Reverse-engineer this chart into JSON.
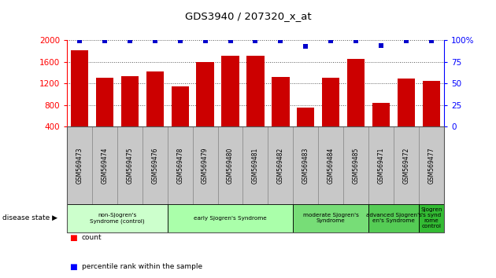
{
  "title": "GDS3940 / 207320_x_at",
  "samples": [
    "GSM569473",
    "GSM569474",
    "GSM569475",
    "GSM569476",
    "GSM569478",
    "GSM569479",
    "GSM569480",
    "GSM569481",
    "GSM569482",
    "GSM569483",
    "GSM569484",
    "GSM569485",
    "GSM569471",
    "GSM569472",
    "GSM569477"
  ],
  "counts": [
    1820,
    1310,
    1340,
    1420,
    1140,
    1590,
    1720,
    1710,
    1320,
    750,
    1310,
    1650,
    840,
    1290,
    1240
  ],
  "percentiles": [
    99,
    99,
    99,
    99,
    99,
    99,
    99,
    99,
    99,
    93,
    99,
    99,
    94,
    99,
    99
  ],
  "bar_color": "#cc0000",
  "dot_color": "#0000cc",
  "ylim": [
    400,
    2000
  ],
  "y2lim": [
    0,
    100
  ],
  "yticks": [
    400,
    800,
    1200,
    1600,
    2000
  ],
  "y2ticks": [
    0,
    25,
    50,
    75,
    100
  ],
  "groups": [
    {
      "label": "non-Sjogren's\nSyndrome (control)",
      "start": 0,
      "end": 4,
      "color": "#ccffcc"
    },
    {
      "label": "early Sjogren's Syndrome",
      "start": 4,
      "end": 9,
      "color": "#aaffaa"
    },
    {
      "label": "moderate Sjogren's\nSyndrome",
      "start": 9,
      "end": 12,
      "color": "#77dd77"
    },
    {
      "label": "advanced Sjogren's\nen's Syndrome",
      "start": 12,
      "end": 14,
      "color": "#55cc55"
    },
    {
      "label": "Sjogren\n's synd\nrome\ncontrol",
      "start": 14,
      "end": 15,
      "color": "#33bb33"
    }
  ],
  "legend_count_label": "count",
  "legend_pct_label": "percentile rank within the sample",
  "disease_state_label": "disease state",
  "background_color": "#ffffff",
  "tick_area_color": "#c8c8c8"
}
